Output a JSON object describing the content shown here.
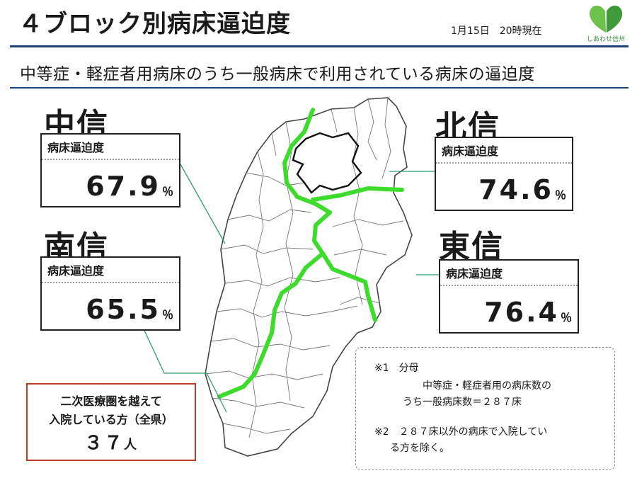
{
  "header": {
    "title": "４ブロック別病床逼迫度",
    "date": "1月15日　20時現在",
    "logo_text": "しあわせ信州"
  },
  "subtitle": "中等症・軽症者用病床のうち一般病床で利用されている病床の逼迫度",
  "regions": {
    "chushin": {
      "name": "中信",
      "label": "病床逼迫度",
      "value": "67.9",
      "unit": "％"
    },
    "hokushin": {
      "name": "北信",
      "label": "病床逼迫度",
      "value": "74.6",
      "unit": "％"
    },
    "nanshin": {
      "name": "南信",
      "label": "病床逼迫度",
      "value": "65.5",
      "unit": "％"
    },
    "toshin": {
      "name": "東信",
      "label": "病床逼迫度",
      "value": "76.4",
      "unit": "％"
    }
  },
  "out_of_area": {
    "line1": "二次医療圏を越えて",
    "line2": "入院している方（全県）",
    "value": "３７",
    "unit": "人"
  },
  "notes": {
    "n1_head": "※1　分母",
    "n1_line1": "中等症・軽症者用の病床数の",
    "n1_line2": "うち一般病床数＝２８７床",
    "n2_line1": "※2　２８７床以外の病床で入院してい",
    "n2_line2": "る方を除く。"
  },
  "colors": {
    "block_border": "#3ddc2c",
    "title_rule": "#1f3f7a",
    "out_of_area_border": "#c0392b",
    "leader_line": "#2e9e6e"
  }
}
